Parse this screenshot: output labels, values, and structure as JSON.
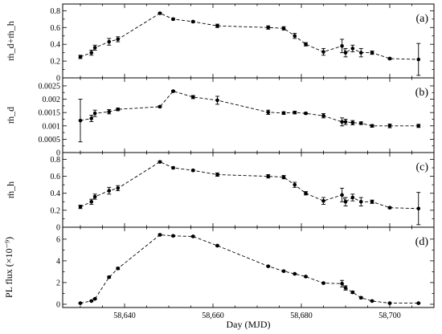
{
  "chart_data": {
    "type": "line",
    "xlabel": "Day (MJD)",
    "xlim": [
      58626,
      58710
    ],
    "xticks": [
      58640,
      58660,
      58680,
      58700
    ],
    "xtick_labels": [
      "58,640",
      "58,660",
      "58,680",
      "58,700"
    ],
    "panels": [
      {
        "label": "(a)",
        "ylabel": "ṁ_d+ṁ_h",
        "ylim": [
          0,
          0.88
        ],
        "yticks": [
          0,
          0.2,
          0.4,
          0.6,
          0.8
        ],
        "ytick_labels": [
          "0",
          "0.2",
          "0.4",
          "0.6",
          "0.8"
        ],
        "series": [
          {
            "x": [
              58630,
              58632.5,
              58633.3,
              58636.5,
              58638.5,
              58648,
              58651,
              58655.5,
              58661,
              58672.5,
              58676,
              58678.5,
              58681,
              58685,
              58689.2,
              58690,
              58691.6,
              58693.5,
              58696,
              58700,
              58706.5
            ],
            "y": [
              0.25,
              0.3,
              0.36,
              0.43,
              0.46,
              0.77,
              0.7,
              0.67,
              0.62,
              0.6,
              0.59,
              0.5,
              0.4,
              0.31,
              0.38,
              0.3,
              0.35,
              0.3,
              0.3,
              0.23,
              0.22
            ],
            "yerr": [
              0.02,
              0.03,
              0.03,
              0.04,
              0.03,
              0.01,
              0.01,
              0.01,
              0.02,
              0.02,
              0.02,
              0.03,
              0.02,
              0.04,
              0.08,
              0.05,
              0.04,
              0.05,
              0.02,
              0.01,
              0.19
            ]
          }
        ]
      },
      {
        "label": "(b)",
        "ylabel": "ṁ_d",
        "ylim": [
          0,
          0.0028
        ],
        "yticks": [
          0,
          0.0005,
          0.001,
          0.0015,
          0.002,
          0.0025
        ],
        "ytick_labels": [
          "0",
          "0.0005",
          "0.001",
          "0.0015",
          "0.002",
          "0.0025"
        ],
        "series": [
          {
            "x": [
              58630,
              58632.5,
              58633.3,
              58636.5,
              58638.5,
              58648,
              58651,
              58655.5,
              58661,
              58672.5,
              58676,
              58678.5,
              58681,
              58685,
              58689.2,
              58690,
              58691.6,
              58693.5,
              58696,
              58700,
              58706.5
            ],
            "y": [
              0.0012,
              0.00128,
              0.00147,
              0.00153,
              0.00162,
              0.00172,
              0.0023,
              0.00208,
              0.00196,
              0.00151,
              0.00148,
              0.0015,
              0.00147,
              0.00138,
              0.00115,
              0.00115,
              0.00112,
              0.0011,
              0.001,
              0.001,
              0.001
            ],
            "yerr": [
              0.0008,
              0.00012,
              0.00012,
              8e-05,
              5e-05,
              3e-05,
              3e-05,
              6e-05,
              0.00015,
              8e-05,
              5e-05,
              5e-05,
              3e-05,
              8e-05,
              0.00015,
              0.0001,
              8e-05,
              5e-05,
              5e-05,
              7e-05,
              6e-05
            ]
          }
        ]
      },
      {
        "label": "(c)",
        "ylabel": "ṁ_h",
        "ylim": [
          0,
          0.88
        ],
        "yticks": [
          0,
          0.2,
          0.4,
          0.6,
          0.8
        ],
        "ytick_labels": [
          "0",
          "0.2",
          "0.4",
          "0.6",
          "0.8"
        ],
        "series": [
          {
            "x": [
              58630,
              58632.5,
              58633.3,
              58636.5,
              58638.5,
              58648,
              58651,
              58655.5,
              58661,
              58672.5,
              58676,
              58678.5,
              58681,
              58685,
              58689.2,
              58690,
              58691.6,
              58693.5,
              58696,
              58700,
              58706.5
            ],
            "y": [
              0.24,
              0.3,
              0.36,
              0.43,
              0.46,
              0.77,
              0.7,
              0.67,
              0.62,
              0.6,
              0.59,
              0.5,
              0.4,
              0.31,
              0.38,
              0.3,
              0.35,
              0.3,
              0.3,
              0.23,
              0.22
            ],
            "yerr": [
              0.02,
              0.03,
              0.03,
              0.04,
              0.03,
              0.01,
              0.01,
              0.01,
              0.02,
              0.02,
              0.02,
              0.03,
              0.02,
              0.04,
              0.08,
              0.05,
              0.04,
              0.05,
              0.02,
              0.01,
              0.19
            ]
          }
        ]
      },
      {
        "label": "(d)",
        "ylabel": "PL flux (×10⁻⁹)",
        "ylim": [
          -0.3,
          7.1
        ],
        "yticks": [
          0,
          2,
          4,
          6
        ],
        "ytick_labels": [
          "0",
          "2",
          "4",
          "6"
        ],
        "series": [
          {
            "x": [
              58630,
              58632.5,
              58633.3,
              58636.5,
              58638.5,
              58648,
              58651,
              58655.5,
              58661,
              58672.5,
              58676,
              58678.5,
              58681,
              58685,
              58689.2,
              58690,
              58691.6,
              58693.5,
              58696,
              58700,
              58706.5
            ],
            "y": [
              0.1,
              0.3,
              0.5,
              2.5,
              3.3,
              6.4,
              6.3,
              6.25,
              5.4,
              3.5,
              3.05,
              2.8,
              2.55,
              1.95,
              1.9,
              1.5,
              1.1,
              0.6,
              0.3,
              0.1,
              0.1
            ],
            "yerr": [
              0.03,
              0.05,
              0.05,
              0.08,
              0.1,
              0.08,
              0.06,
              0.06,
              0.06,
              0.06,
              0.06,
              0.05,
              0.05,
              0.05,
              0.3,
              0.2,
              0.1,
              0.08,
              0.05,
              0.04,
              0.04
            ]
          }
        ]
      }
    ]
  }
}
